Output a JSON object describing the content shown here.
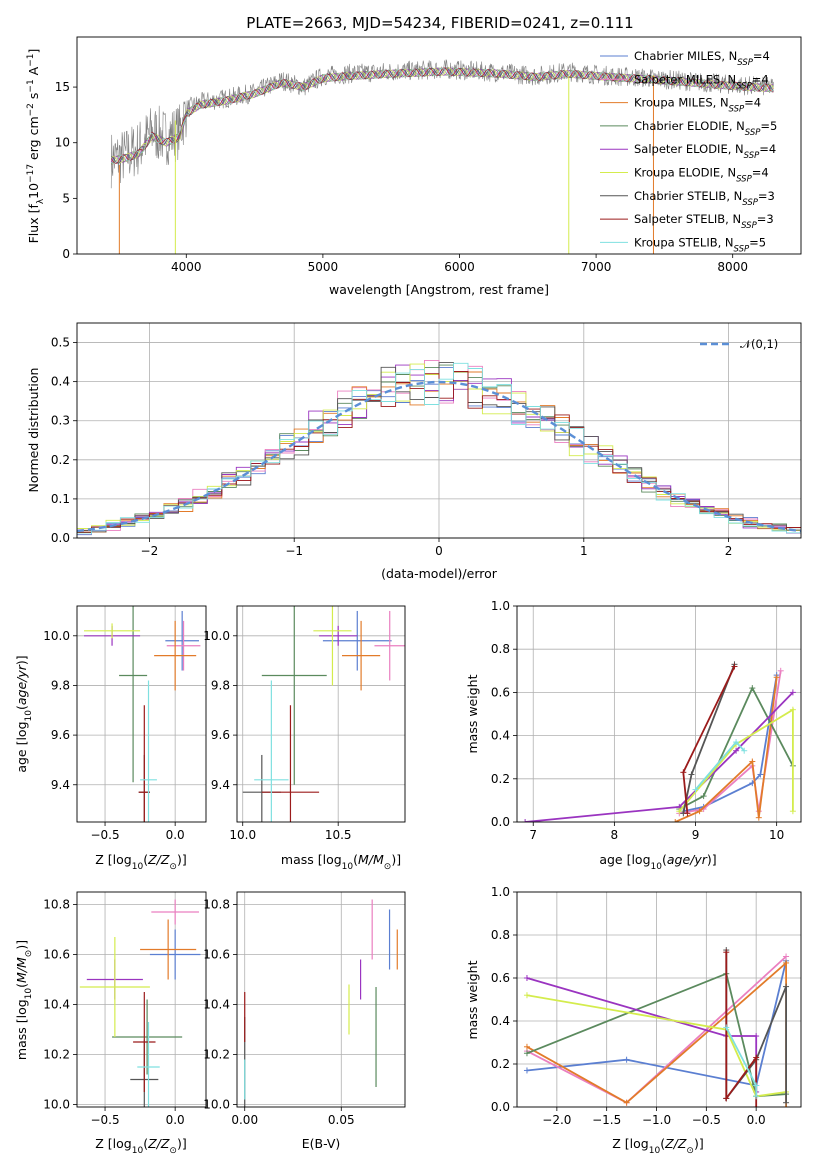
{
  "colors": {
    "Chabrier MILES": "#5b7fd1",
    "Salpeter MILES": "#ea7fc0",
    "Kroupa MILES": "#e27b2a",
    "Chabrier ELODIE": "#5b8a5e",
    "Salpeter ELODIE": "#9a34c0",
    "Kroupa ELODIE": "#d4ec4d",
    "Chabrier STELIB": "#555555",
    "Salpeter STELIB": "#9b1b1b",
    "Kroupa STELIB": "#7fe0e0"
  },
  "chart_data": [
    {
      "id": "spectrum",
      "type": "line",
      "title": "PLATE=2663, MJD=54234, FIBERID=0241, z=0.111",
      "xlabel": "wavelength [Angstrom, rest frame]",
      "ylabel": "Flux [f_λ10^-17 erg cm^-2 s^-1 A^-1]",
      "xlim": [
        3200,
        8500
      ],
      "ylim": [
        0,
        19.5
      ],
      "xticks": [
        4000,
        5000,
        6000,
        7000,
        8000
      ],
      "yticks": [
        0,
        5,
        10,
        15
      ],
      "grid": false,
      "legend_position": "right",
      "legend": [
        {
          "name": "Chabrier MILES",
          "nssp": "4"
        },
        {
          "name": "Salpeter MILES",
          "nssp": "4"
        },
        {
          "name": "Kroupa MILES",
          "nssp": "4"
        },
        {
          "name": "Chabrier ELODIE",
          "nssp": "5"
        },
        {
          "name": "Salpeter ELODIE",
          "nssp": "4"
        },
        {
          "name": "Kroupa ELODIE",
          "nssp": "4"
        },
        {
          "name": "Chabrier STELIB",
          "nssp": "3"
        },
        {
          "name": "Salpeter STELIB",
          "nssp": "3"
        },
        {
          "name": "Kroupa STELIB",
          "nssp": "5"
        }
      ],
      "data_trace": {
        "color": "#808080",
        "x": [
          3450,
          3550,
          3650,
          3750,
          3850,
          3950,
          4000,
          4100,
          4300,
          4500,
          4700,
          4860,
          5000,
          5200,
          5500,
          5900,
          6300,
          6563,
          6800,
          7100,
          7400,
          7700,
          8000,
          8300
        ],
        "y": [
          8.5,
          8.8,
          9.5,
          11.0,
          10.5,
          11.0,
          13.0,
          13.6,
          14.0,
          14.5,
          15.6,
          15.0,
          16.0,
          16.2,
          16.4,
          16.6,
          16.3,
          16.0,
          16.4,
          16.0,
          15.8,
          15.5,
          15.2,
          15.0
        ]
      },
      "model_trace": {
        "x": [
          3450,
          3550,
          3650,
          3750,
          3850,
          3950,
          4000,
          4100,
          4300,
          4500,
          4700,
          4860,
          5000,
          5200,
          5500,
          5900,
          6300,
          6563,
          6800,
          7100,
          7400,
          7700,
          8000,
          8300
        ],
        "y": [
          8.4,
          8.6,
          9.0,
          10.6,
          10.0,
          10.5,
          12.6,
          13.4,
          13.8,
          14.4,
          15.4,
          15.0,
          15.8,
          16.0,
          16.2,
          16.4,
          16.2,
          15.9,
          16.2,
          15.9,
          15.7,
          15.4,
          15.1,
          14.9
        ]
      }
    },
    {
      "id": "residuals",
      "type": "histogram",
      "xlabel": "(data-model)/error",
      "ylabel": "Normed distribution",
      "xlim": [
        -2.5,
        2.5
      ],
      "ylim": [
        0,
        0.55
      ],
      "xticks": [
        -2,
        -1,
        0,
        1,
        2
      ],
      "yticks": [
        0.0,
        0.1,
        0.2,
        0.3,
        0.4,
        0.5
      ],
      "grid": true,
      "legend_position": "top-right",
      "gaussian_label": "𝒩(0,1)",
      "gaussian_color": "#5b8fd6",
      "bin_width": 0.1
    },
    {
      "id": "z-age",
      "type": "errorbar",
      "xlabel": "Z [log10(Z/Z⊙)]",
      "ylabel": "age  [log10(age/yr)]",
      "xlim": [
        -0.7,
        0.22
      ],
      "ylim": [
        9.25,
        10.12
      ],
      "xticks": [
        -0.5,
        0.0
      ],
      "yticks": [
        9.4,
        9.6,
        9.8,
        10.0
      ],
      "grid": true,
      "points": [
        {
          "model": "Chabrier MILES",
          "x": 0.05,
          "xerr": 0.12,
          "y": 9.98,
          "yerr": 0.12
        },
        {
          "model": "Salpeter MILES",
          "x": 0.06,
          "xerr": 0.12,
          "y": 9.96,
          "yerr": 0.1
        },
        {
          "model": "Kroupa MILES",
          "x": 0.0,
          "xerr": 0.15,
          "y": 9.92,
          "yerr": 0.14
        },
        {
          "model": "Chabrier ELODIE",
          "x": -0.3,
          "xerr": 0.1,
          "y": 9.84,
          "yerr": 0.43
        },
        {
          "model": "Salpeter ELODIE",
          "x": -0.45,
          "xerr": 0.2,
          "y": 10.0,
          "yerr": 0.04
        },
        {
          "model": "Kroupa ELODIE",
          "x": -0.45,
          "xerr": 0.2,
          "y": 10.02,
          "yerr": 0.03
        },
        {
          "model": "Chabrier STELIB",
          "x": -0.22,
          "xerr": 0.04,
          "y": 9.37,
          "yerr": 0.15
        },
        {
          "model": "Salpeter STELIB",
          "x": -0.22,
          "xerr": 0.04,
          "y": 9.37,
          "yerr": 0.35
        },
        {
          "model": "Kroupa STELIB",
          "x": -0.19,
          "xerr": 0.06,
          "y": 9.42,
          "yerr": 0.4
        }
      ]
    },
    {
      "id": "mass-age",
      "type": "errorbar",
      "xlabel": "mass [log10(M/M⊙)]",
      "ylabel": "",
      "xlim": [
        9.97,
        10.85
      ],
      "ylim": [
        9.25,
        10.12
      ],
      "xticks": [
        10.0,
        10.5
      ],
      "yticks": [
        9.4,
        9.6,
        9.8,
        10.0
      ],
      "grid": true,
      "points": [
        {
          "model": "Chabrier MILES",
          "x": 10.6,
          "xerr": 0.18,
          "y": 9.98,
          "yerr": 0.12
        },
        {
          "model": "Salpeter MILES",
          "x": 10.77,
          "xerr": 0.08,
          "y": 9.96,
          "yerr": 0.14
        },
        {
          "model": "Kroupa MILES",
          "x": 10.62,
          "xerr": 0.1,
          "y": 9.92,
          "yerr": 0.14
        },
        {
          "model": "Chabrier ELODIE",
          "x": 10.27,
          "xerr": 0.17,
          "y": 9.84,
          "yerr": 0.44
        },
        {
          "model": "Salpeter ELODIE",
          "x": 10.5,
          "xerr": 0.1,
          "y": 10.0,
          "yerr": 0.04
        },
        {
          "model": "Kroupa ELODIE",
          "x": 10.47,
          "xerr": 0.1,
          "y": 10.02,
          "yerr": 0.22
        },
        {
          "model": "Chabrier STELIB",
          "x": 10.1,
          "xerr": 0.1,
          "y": 9.37,
          "yerr": 0.15
        },
        {
          "model": "Salpeter STELIB",
          "x": 10.25,
          "xerr": 0.15,
          "y": 9.37,
          "yerr": 0.35
        },
        {
          "model": "Kroupa STELIB",
          "x": 10.15,
          "xerr": 0.09,
          "y": 9.42,
          "yerr": 0.4
        }
      ]
    },
    {
      "id": "age-weight",
      "type": "line",
      "xlabel": "age  [log10(age/yr)]",
      "ylabel": "mass weight",
      "xlim": [
        6.8,
        10.3
      ],
      "ylim": [
        0.0,
        1.0
      ],
      "xticks": [
        7,
        8,
        9,
        10
      ],
      "yticks": [
        0.0,
        0.2,
        0.4,
        0.6,
        0.8,
        1.0
      ],
      "grid": true,
      "series": [
        {
          "model": "Chabrier MILES",
          "x": [
            8.85,
            9.1,
            9.7,
            9.8,
            10.0
          ],
          "y": [
            0.05,
            0.07,
            0.18,
            0.22,
            0.68
          ]
        },
        {
          "model": "Salpeter MILES",
          "x": [
            8.8,
            9.1,
            9.7,
            9.78,
            10.05
          ],
          "y": [
            0.04,
            0.06,
            0.26,
            0.05,
            0.7
          ]
        },
        {
          "model": "Kroupa MILES",
          "x": [
            8.75,
            9.05,
            9.7,
            9.78,
            10.0
          ],
          "y": [
            0.0,
            0.05,
            0.28,
            0.02,
            0.67
          ]
        },
        {
          "model": "Chabrier ELODIE",
          "x": [
            8.8,
            9.1,
            9.7,
            10.2
          ],
          "y": [
            0.06,
            0.12,
            0.62,
            0.26
          ]
        },
        {
          "model": "Salpeter ELODIE",
          "x": [
            6.9,
            8.8,
            9.5,
            10.2
          ],
          "y": [
            0.0,
            0.07,
            0.33,
            0.6
          ]
        },
        {
          "model": "Kroupa ELODIE",
          "x": [
            8.8,
            9.5,
            10.2,
            10.2
          ],
          "y": [
            0.05,
            0.36,
            0.52,
            0.05
          ]
        },
        {
          "model": "Chabrier STELIB",
          "x": [
            8.85,
            8.95,
            9.48
          ],
          "y": [
            0.04,
            0.22,
            0.73
          ]
        },
        {
          "model": "Salpeter STELIB",
          "x": [
            8.9,
            8.85,
            9.48
          ],
          "y": [
            0.04,
            0.23,
            0.72
          ]
        },
        {
          "model": "Kroupa STELIB",
          "x": [
            9.0,
            9.5,
            9.6
          ],
          "y": [
            0.15,
            0.37,
            0.33
          ]
        }
      ]
    },
    {
      "id": "z-mass",
      "type": "errorbar",
      "xlabel": "Z [log10(Z/Z⊙)]",
      "ylabel": "mass [log10(M/M⊙)]",
      "xlim": [
        -0.7,
        0.22
      ],
      "ylim": [
        9.99,
        10.85
      ],
      "xticks": [
        -0.5,
        0.0
      ],
      "yticks": [
        10.0,
        10.2,
        10.4,
        10.6,
        10.8
      ],
      "grid": true,
      "points": [
        {
          "model": "Chabrier MILES",
          "x": 0.0,
          "xerr": 0.18,
          "y": 10.6,
          "yerr": 0.1
        },
        {
          "model": "Salpeter MILES",
          "x": 0.0,
          "xerr": 0.17,
          "y": 10.77,
          "yerr": 0.05
        },
        {
          "model": "Kroupa MILES",
          "x": -0.05,
          "xerr": 0.2,
          "y": 10.62,
          "yerr": 0.12
        },
        {
          "model": "Chabrier ELODIE",
          "x": -0.2,
          "xerr": 0.25,
          "y": 10.27,
          "yerr": 0.15
        },
        {
          "model": "Salpeter ELODIE",
          "x": -0.43,
          "xerr": 0.2,
          "y": 10.5,
          "yerr": 0.08
        },
        {
          "model": "Kroupa ELODIE",
          "x": -0.43,
          "xerr": 0.25,
          "y": 10.47,
          "yerr": 0.2
        },
        {
          "model": "Chabrier STELIB",
          "x": -0.22,
          "xerr": 0.1,
          "y": 10.1,
          "yerr": 0.16
        },
        {
          "model": "Salpeter STELIB",
          "x": -0.22,
          "xerr": 0.08,
          "y": 10.25,
          "yerr": 0.2
        },
        {
          "model": "Kroupa STELIB",
          "x": -0.19,
          "xerr": 0.08,
          "y": 10.15,
          "yerr": 0.18
        }
      ]
    },
    {
      "id": "ebv-mass",
      "type": "errorbar",
      "xlabel": "E(B-V)",
      "ylabel": "",
      "xlim": [
        -0.004,
        0.083
      ],
      "ylim": [
        9.99,
        10.85
      ],
      "xticks": [
        0.0,
        0.05
      ],
      "yticks": [
        10.0,
        10.2,
        10.4,
        10.6,
        10.8
      ],
      "grid": true,
      "points": [
        {
          "model": "Chabrier MILES",
          "x": 0.075,
          "y": 10.66,
          "yerr": 0.12
        },
        {
          "model": "Salpeter MILES",
          "x": 0.066,
          "y": 10.7,
          "yerr": 0.12
        },
        {
          "model": "Kroupa MILES",
          "x": 0.079,
          "y": 10.62,
          "yerr": 0.08
        },
        {
          "model": "Chabrier ELODIE",
          "x": 0.068,
          "y": 10.27,
          "yerr": 0.2
        },
        {
          "model": "Salpeter ELODIE",
          "x": 0.06,
          "y": 10.5,
          "yerr": 0.08
        },
        {
          "model": "Kroupa ELODIE",
          "x": 0.054,
          "y": 10.38,
          "yerr": 0.1
        },
        {
          "model": "Chabrier STELIB",
          "x": 0.0,
          "y": 10.15,
          "yerr": 0.2
        },
        {
          "model": "Salpeter STELIB",
          "x": 0.0,
          "y": 10.35,
          "yerr": 0.1
        },
        {
          "model": "Kroupa STELIB",
          "x": 0.0,
          "y": 10.1,
          "yerr": 0.08
        }
      ]
    },
    {
      "id": "z-weight",
      "type": "line",
      "xlabel": "Z [log10(Z/Z⊙)]",
      "ylabel": "mass weight",
      "xlim": [
        -2.4,
        0.45
      ],
      "ylim": [
        0.0,
        1.0
      ],
      "xticks": [
        -2.0,
        -1.5,
        -1.0,
        -0.5,
        0.0
      ],
      "yticks": [
        0.0,
        0.2,
        0.4,
        0.6,
        0.8,
        1.0
      ],
      "grid": true,
      "series": [
        {
          "model": "Chabrier MILES",
          "x": [
            -2.3,
            -1.3,
            0.0,
            0.3
          ],
          "y": [
            0.17,
            0.22,
            0.1,
            0.68
          ]
        },
        {
          "model": "Salpeter MILES",
          "x": [
            -2.3,
            -1.3,
            0.3
          ],
          "y": [
            0.26,
            0.02,
            0.7
          ]
        },
        {
          "model": "Kroupa MILES",
          "x": [
            -2.3,
            -1.3,
            0.3,
            0.3
          ],
          "y": [
            0.28,
            0.02,
            0.67,
            0.0
          ]
        },
        {
          "model": "Chabrier ELODIE",
          "x": [
            -2.3,
            -0.3,
            0.0,
            0.3
          ],
          "y": [
            0.25,
            0.62,
            0.05,
            0.06
          ]
        },
        {
          "model": "Salpeter ELODIE",
          "x": [
            -2.3,
            -0.3,
            0.0,
            0.0
          ],
          "y": [
            0.6,
            0.33,
            0.33,
            0.07
          ]
        },
        {
          "model": "Kroupa ELODIE",
          "x": [
            -2.3,
            -0.3,
            0.0,
            0.3
          ],
          "y": [
            0.52,
            0.36,
            0.05,
            0.07
          ]
        },
        {
          "model": "Chabrier STELIB",
          "x": [
            -0.3,
            -0.3,
            0.0,
            0.3,
            0.3
          ],
          "y": [
            0.73,
            0.04,
            0.22,
            0.56,
            0.02
          ]
        },
        {
          "model": "Salpeter STELIB",
          "x": [
            -0.3,
            -0.3,
            0.0,
            0.0
          ],
          "y": [
            0.72,
            0.04,
            0.23,
            0.0
          ]
        },
        {
          "model": "Kroupa STELIB",
          "x": [
            -0.3,
            0.0,
            0.0
          ],
          "y": [
            0.37,
            0.1,
            0.05
          ]
        }
      ]
    }
  ]
}
